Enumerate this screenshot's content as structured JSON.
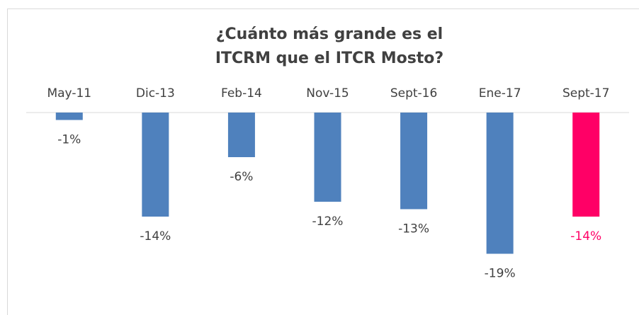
{
  "chart_data": {
    "type": "bar",
    "title": "¿Cuánto más grande es el ITCRM que el ITCR Mosto?",
    "categories": [
      "May-11",
      "Dic-13",
      "Feb-14",
      "Nov-15",
      "Sept-16",
      "Ene-17",
      "Sept-17"
    ],
    "values": [
      -1,
      -14,
      -6,
      -12,
      -13,
      -19,
      -14
    ],
    "value_labels": [
      "-1%",
      "-14%",
      "-6%",
      "-12%",
      "-13%",
      "-19%",
      "-14%"
    ],
    "colors": [
      "#4f81bd",
      "#4f81bd",
      "#4f81bd",
      "#4f81bd",
      "#4f81bd",
      "#4f81bd",
      "#ff0066"
    ],
    "label_colors": [
      "#404040",
      "#404040",
      "#404040",
      "#404040",
      "#404040",
      "#404040",
      "#ff0066"
    ],
    "ylim": [
      -20,
      0
    ]
  }
}
